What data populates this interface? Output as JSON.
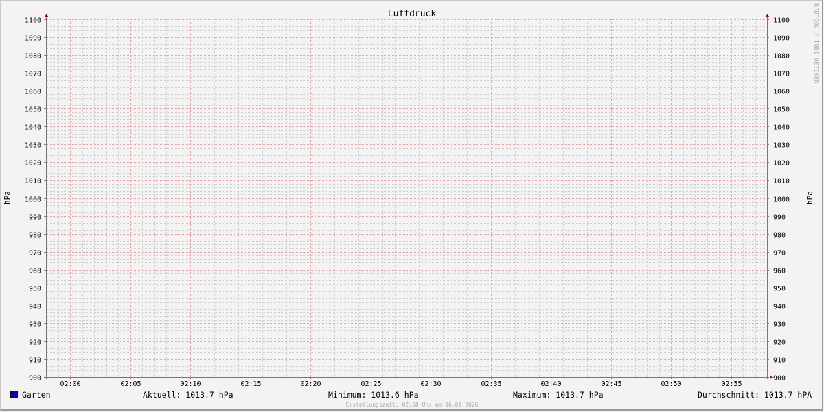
{
  "chart_data": {
    "type": "line",
    "title": "Luftdruck",
    "ylabel": "hPa",
    "ylabel_right": "hPa",
    "ylim": [
      900,
      1100
    ],
    "yticks": [
      900,
      910,
      920,
      930,
      940,
      950,
      960,
      970,
      980,
      990,
      1000,
      1010,
      1020,
      1030,
      1040,
      1050,
      1060,
      1070,
      1080,
      1090,
      1100
    ],
    "xlim": [
      "01:58",
      "02:58"
    ],
    "xticks": [
      "02:00",
      "02:05",
      "02:10",
      "02:15",
      "02:20",
      "02:25",
      "02:30",
      "02:35",
      "02:40",
      "02:45",
      "02:50",
      "02:55"
    ],
    "grid": true,
    "series": [
      {
        "name": "Garten",
        "color": "#000080",
        "x": [
          "01:58",
          "02:58"
        ],
        "y": [
          1013.6,
          1013.6
        ]
      }
    ]
  },
  "legend": {
    "series_name": "Garten",
    "swatch_color": "#0000cc",
    "current": "Aktuell: 1013.7 hPa",
    "minimum": "Minimum: 1013.6 hPa",
    "maximum": "Maximum: 1013.7 hPa",
    "average": "Durchschnitt: 1013.7 hPA"
  },
  "footer": "Erstellungszeit: 02:58 Uhr am 06.01.2026",
  "watermark": "RRDTOOL / TOBI OETIKER"
}
